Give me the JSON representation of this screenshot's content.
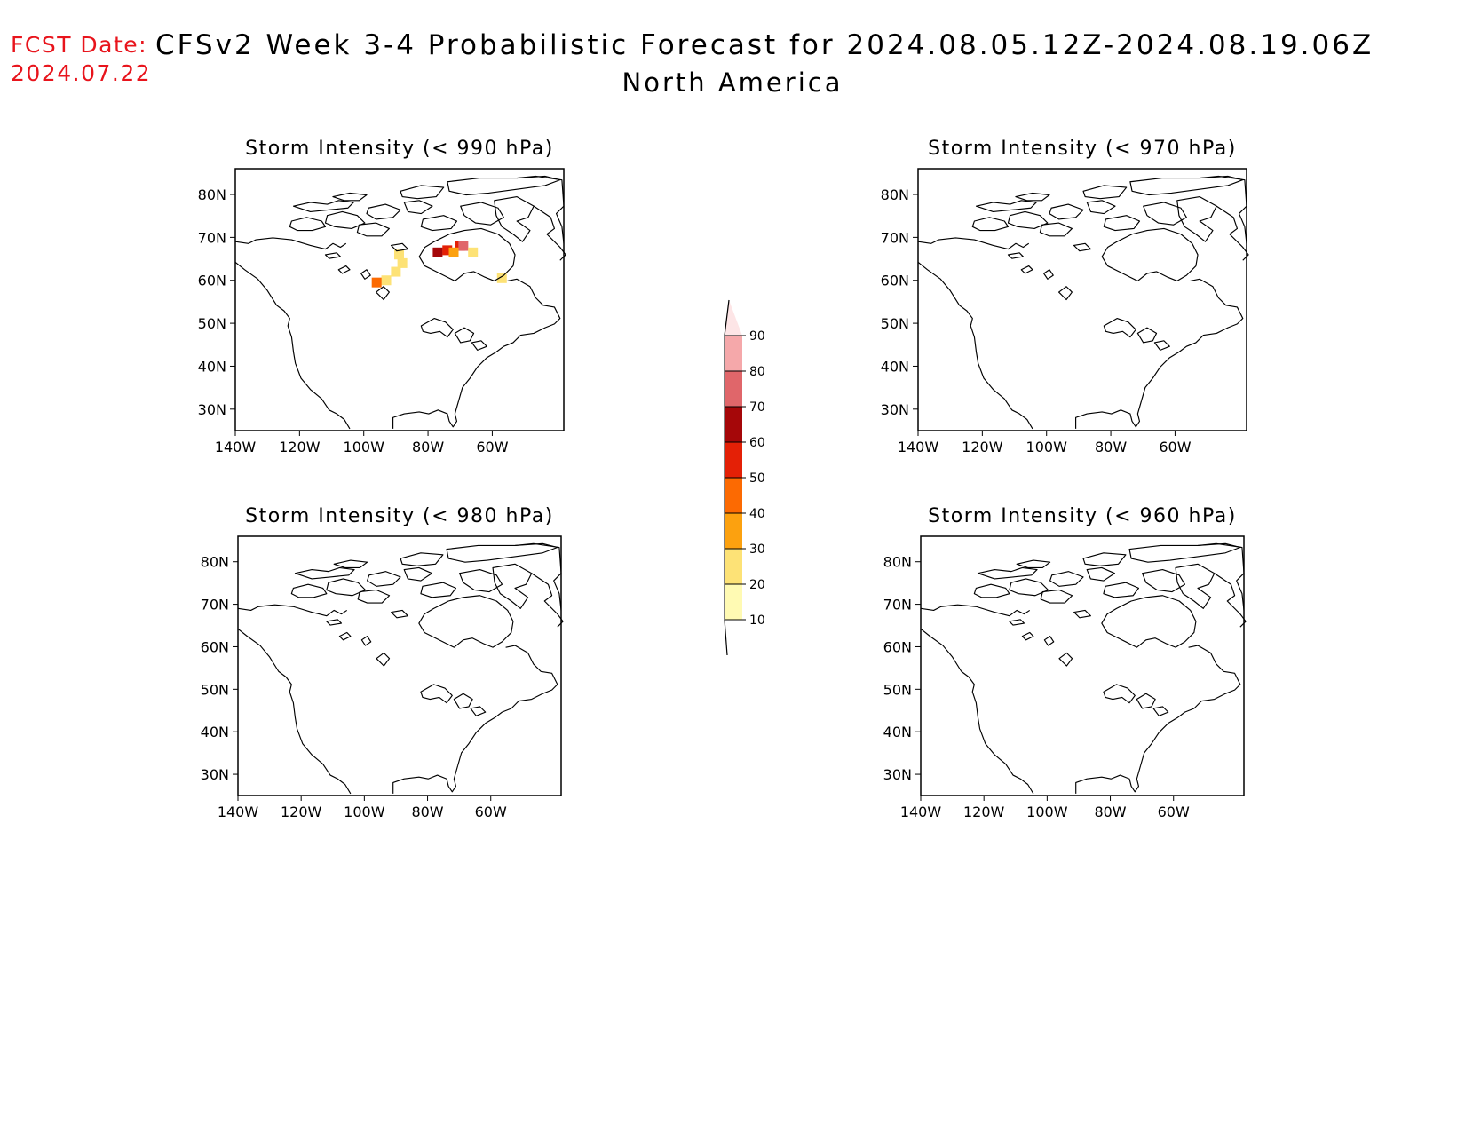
{
  "header": {
    "fcst_label": "FCST Date:",
    "fcst_date": "2024.07.22",
    "title": "CFSv2 Week 3-4 Probabilistic Forecast for 2024.08.05.12Z-2024.08.19.06Z",
    "subtitle": "North America"
  },
  "colors": {
    "coast": "#000000",
    "bins": [
      "#fffab3",
      "#fde276",
      "#fca10f",
      "#fc6a02",
      "#e42006",
      "#a50709",
      "#e0666a",
      "#f5a8aa",
      "#fde5e6"
    ]
  },
  "panels": [
    {
      "id": "p990",
      "title": "Storm Intensity (< 990 hPa)",
      "box": "",
      "lat_labels": [
        "80N",
        "70N",
        "60N",
        "50N",
        "40N",
        "30N"
      ],
      "lon_labels": [
        "140W",
        "120W",
        "100W",
        "80W",
        "60W"
      ],
      "probability_cells": [
        {
          "lon": -89,
          "lat": 66,
          "value": 20
        },
        {
          "lon": -88,
          "lat": 64,
          "value": 20
        },
        {
          "lon": -90,
          "lat": 62,
          "value": 20
        },
        {
          "lon": -93,
          "lat": 60,
          "value": 20
        },
        {
          "lon": -96,
          "lat": 59.5,
          "value": 40
        },
        {
          "lon": -77,
          "lat": 66.5,
          "value": 60
        },
        {
          "lon": -74,
          "lat": 67,
          "value": 50
        },
        {
          "lon": -70,
          "lat": 68,
          "value": 50
        },
        {
          "lon": -69,
          "lat": 68,
          "value": 70
        },
        {
          "lon": -72,
          "lat": 66.5,
          "value": 30
        },
        {
          "lon": -66,
          "lat": 66.5,
          "value": 20
        },
        {
          "lon": -57,
          "lat": 60.5,
          "value": 20
        }
      ]
    },
    {
      "id": "p970",
      "title": "Storm Intensity (< 970 hPa)",
      "lat_labels": [
        "80N",
        "70N",
        "60N",
        "50N",
        "40N",
        "30N"
      ],
      "lon_labels": [
        "140W",
        "120W",
        "100W",
        "80W",
        "60W"
      ],
      "probability_cells": []
    },
    {
      "id": "p980",
      "title": "Storm Intensity (< 980 hPa)",
      "lat_labels": [
        "80N",
        "70N",
        "60N",
        "50N",
        "40N",
        "30N"
      ],
      "lon_labels": [
        "140W",
        "120W",
        "100W",
        "80W",
        "60W"
      ],
      "probability_cells": []
    },
    {
      "id": "p960",
      "title": "Storm Intensity (< 960 hPa)",
      "lat_labels": [
        "80N",
        "70N",
        "60N",
        "50N",
        "40N",
        "30N"
      ],
      "lon_labels": [
        "140W",
        "120W",
        "100W",
        "80W",
        "60W"
      ],
      "probability_cells": []
    }
  ],
  "colorbar": {
    "labels": [
      "90",
      "80",
      "70",
      "60",
      "50",
      "40",
      "30",
      "20",
      "10"
    ]
  }
}
